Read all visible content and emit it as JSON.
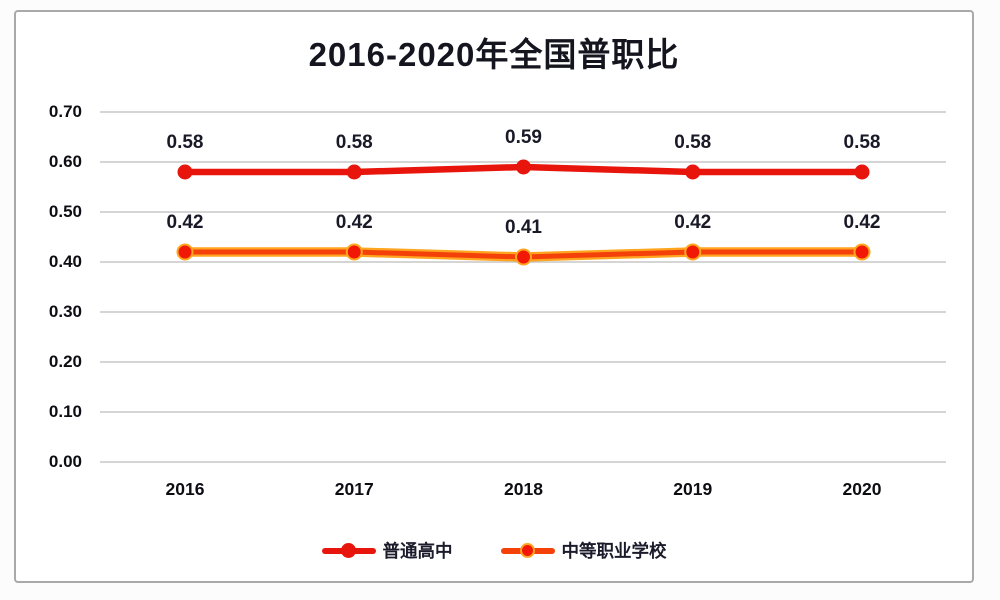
{
  "chart_data": {
    "type": "line",
    "title": "2016-2020年全国普职比",
    "categories": [
      "2016",
      "2017",
      "2018",
      "2019",
      "2020"
    ],
    "series": [
      {
        "name": "普通高中",
        "values": [
          0.58,
          0.58,
          0.59,
          0.58,
          0.58
        ],
        "line_color": "#e8150c",
        "marker_color": "#e8150c",
        "halo_color": null
      },
      {
        "name": "中等职业学校",
        "values": [
          0.42,
          0.42,
          0.41,
          0.42,
          0.42
        ],
        "line_color": "#f4410a",
        "marker_color": "#f21806",
        "halo_color": "#ffa51f"
      }
    ],
    "xlabel": "",
    "ylabel": "",
    "ylim": [
      0.0,
      0.7
    ],
    "ytick_step": 0.1,
    "yticks": [
      "0.70",
      "0.60",
      "0.50",
      "0.40",
      "0.30",
      "0.20",
      "0.10",
      "0.00"
    ],
    "grid": true,
    "gridline_color": "#bcbcbc",
    "legend_position": "bottom",
    "value_labels_shown": true,
    "value_label_decimals": 2
  },
  "frame": {
    "border_color": "#a9a9a9",
    "background": "#ffffff"
  }
}
